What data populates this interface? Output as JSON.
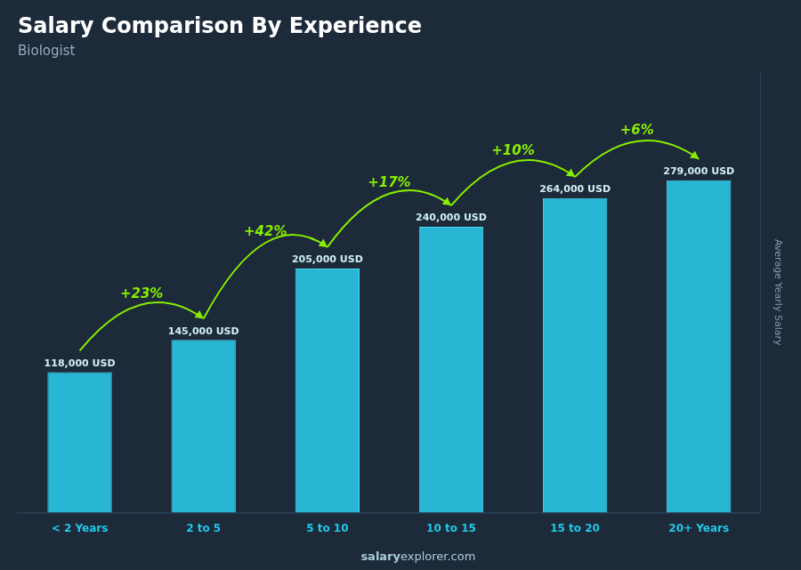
{
  "chart_data": {
    "type": "bar",
    "title": "Salary Comparison By Experience",
    "subtitle": "Biologist",
    "categories": [
      "< 2 Years",
      "2 to 5",
      "5 to 10",
      "10 to 15",
      "15 to 20",
      "20+ Years"
    ],
    "values": [
      118000,
      145000,
      205000,
      240000,
      264000,
      279000
    ],
    "value_labels": [
      "118,000 USD",
      "145,000 USD",
      "205,000 USD",
      "240,000 USD",
      "264,000 USD",
      "279,000 USD"
    ],
    "data_labels": true,
    "annotations": [
      "+23%",
      "+42%",
      "+17%",
      "+10%",
      "+6%"
    ],
    "ylabel": "Average Yearly Salary",
    "watermark": [
      "salary",
      "explorer.com"
    ],
    "color": "#29b6d4",
    "ylim": [
      0,
      370000
    ],
    "tick_labels": "x",
    "grid": false
  }
}
